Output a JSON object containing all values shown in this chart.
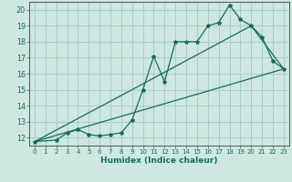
{
  "xlabel": "Humidex (Indice chaleur)",
  "background_color": "#cce8e0",
  "grid_color": "#aacccc",
  "line_color": "#1a6b5a",
  "xlim": [
    -0.5,
    23.5
  ],
  "ylim": [
    11.5,
    20.5
  ],
  "xticks": [
    0,
    1,
    2,
    3,
    4,
    5,
    6,
    7,
    8,
    9,
    10,
    11,
    12,
    13,
    14,
    15,
    16,
    17,
    18,
    19,
    20,
    21,
    22,
    23
  ],
  "yticks": [
    12,
    13,
    14,
    15,
    16,
    17,
    18,
    19,
    20
  ],
  "line1_x": [
    0,
    2,
    3,
    4,
    5,
    6,
    7,
    8,
    9,
    10,
    11,
    12,
    13,
    14,
    15,
    16,
    17,
    18,
    19,
    20,
    21,
    22,
    23
  ],
  "line1_y": [
    11.75,
    11.85,
    12.3,
    12.5,
    12.2,
    12.1,
    12.2,
    12.3,
    13.1,
    15.0,
    17.1,
    15.5,
    18.0,
    18.0,
    18.0,
    19.0,
    19.2,
    20.3,
    19.4,
    19.0,
    18.3,
    16.8,
    16.3
  ],
  "line2_x": [
    0,
    23
  ],
  "line2_y": [
    11.75,
    16.3
  ],
  "line3_x": [
    0,
    9,
    20,
    23
  ],
  "line3_y": [
    11.75,
    15.0,
    19.0,
    16.3
  ]
}
